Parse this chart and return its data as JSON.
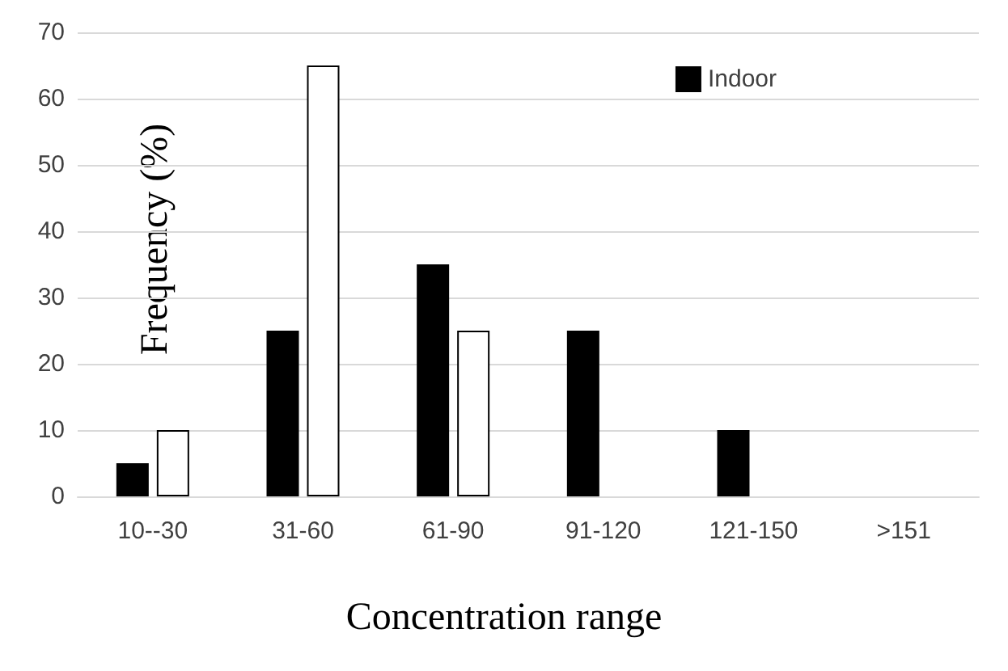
{
  "chart_data": {
    "type": "bar",
    "xlabel": "Concentration range",
    "ylabel": "Frequency (%)",
    "categories": [
      "10--30",
      "31-60",
      "61-90",
      "91-120",
      "121-150",
      ">151"
    ],
    "series": [
      {
        "name": "Indoor",
        "color": "#000000",
        "values": [
          5,
          25,
          35,
          25,
          10,
          0
        ]
      },
      {
        "color": "#ffffff",
        "values": [
          10,
          65,
          25,
          0,
          0,
          0
        ]
      }
    ],
    "ylim": [
      0,
      70
    ],
    "yticks": [
      0,
      10,
      20,
      30,
      40,
      50,
      60,
      70
    ],
    "grid": "y",
    "legend": "top right"
  }
}
